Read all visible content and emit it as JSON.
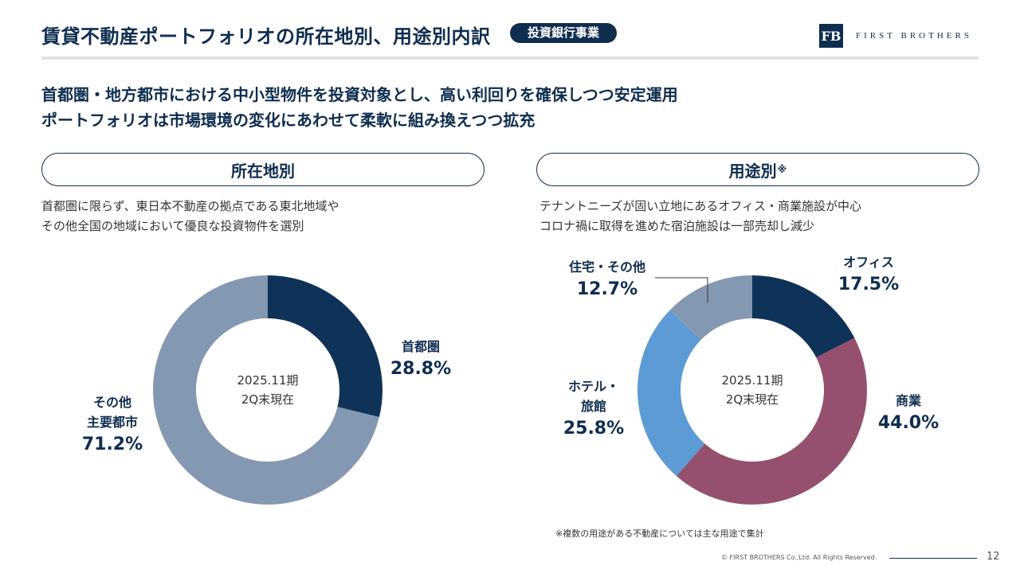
{
  "header": {
    "title": "賃貸不動産ポートフォリオの所在地別、用途別内訳",
    "badge": "投資銀行事業",
    "logo_mark": "FB",
    "logo_text": "FIRST BROTHERS"
  },
  "lead": {
    "line1": "首都圏・地方都市における中小型物件を投資対象とし、高い利回りを確保しつつ安定運用",
    "line2": "ポートフォリオは市場環境の変化にあわせて柔軟に組み換えつつ拡充"
  },
  "location": {
    "heading": "所在地別",
    "desc_line1": "首都圏に限らず、東日本不動産の拠点である東北地域や",
    "desc_line2": "その他全国の地域において優良な投資物件を選別",
    "center_line1": "2025.11期",
    "center_line2": "2Q末現在",
    "labels": {
      "metro_name": "首都圏",
      "metro_pct": "28.8%",
      "other_name1": "その他",
      "other_name2": "主要都市",
      "other_pct": "71.2%"
    }
  },
  "usage": {
    "heading": "用途別",
    "heading_mark": "※",
    "desc_line1": "テナントニーズが固い立地にあるオフィス・商業施設が中心",
    "desc_line2": "コロナ禍に取得を進めた宿泊施設は一部売却し減少",
    "center_line1": "2025.11期",
    "center_line2": "2Q末現在",
    "labels": {
      "office_name": "オフィス",
      "office_pct": "17.5%",
      "retail_name": "商業",
      "retail_pct": "44.0%",
      "hotel_name1": "ホテル・",
      "hotel_name2": "旅館",
      "hotel_pct": "25.8%",
      "residential_name": "住宅・その他",
      "residential_pct": "12.7%"
    }
  },
  "chart_data": [
    {
      "type": "pie",
      "title": "所在地別",
      "categories": [
        "首都圏",
        "その他主要都市"
      ],
      "values": [
        28.8,
        71.2
      ],
      "colors": [
        "#0f3358",
        "#8598b1"
      ],
      "center_text": "2025.11期 2Q末現在"
    },
    {
      "type": "pie",
      "title": "用途別※",
      "categories": [
        "オフィス",
        "商業",
        "ホテル・旅館",
        "住宅・その他"
      ],
      "values": [
        17.5,
        44.0,
        25.8,
        12.7
      ],
      "colors": [
        "#0f3358",
        "#95506f",
        "#5c9bd5",
        "#8598b1"
      ],
      "center_text": "2025.11期 2Q末現在"
    }
  ],
  "footer": {
    "footnote": "※複数の用途がある不動産については主な用途で集計",
    "copyright": "© FIRST BROTHERS Co.,Ltd. All Rights Reserved.",
    "page": "12"
  }
}
